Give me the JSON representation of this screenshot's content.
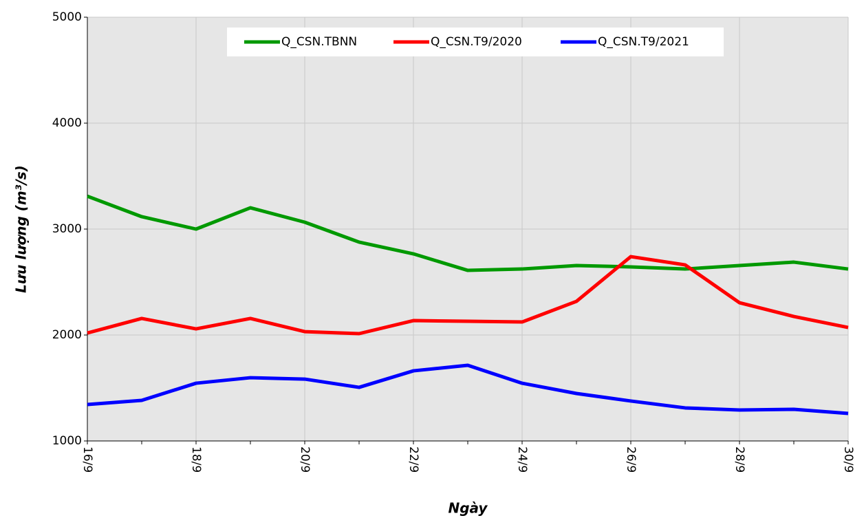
{
  "chart_data": {
    "type": "line",
    "x_label": "Ngày",
    "y_label": "Lưu lượng (m³/s)",
    "categories": [
      "16/9",
      null,
      "18/9",
      null,
      "20/9",
      null,
      "22/9",
      null,
      "24/9",
      null,
      "26/9",
      null,
      "28/9",
      null,
      "30/9"
    ],
    "series": [
      {
        "name": "Q_CSN.TBNN",
        "color": "#009900",
        "values": [
          3310,
          3117,
          3000,
          3201,
          3065,
          2877,
          2766,
          2610,
          2623,
          2656,
          2643,
          2623,
          2656,
          2688,
          2623
        ]
      },
      {
        "name": "Q_CSN.T9/2020",
        "color": "#ff0000",
        "values": [
          2019,
          2156,
          2058,
          2156,
          2032,
          2013,
          2136,
          2130,
          2123,
          2318,
          2740,
          2662,
          2305,
          2175,
          2071
        ]
      },
      {
        "name": "Q_CSN.T9/2021",
        "color": "#0000ff",
        "values": [
          1344,
          1383,
          1545,
          1597,
          1584,
          1506,
          1662,
          1714,
          1545,
          1448,
          1377,
          1312,
          1292,
          1299,
          1260
        ]
      }
    ],
    "ylim": [
      1000,
      5000
    ],
    "yticks": [
      1000,
      2000,
      3000,
      4000,
      5000
    ],
    "grid": true,
    "legend": "top"
  }
}
